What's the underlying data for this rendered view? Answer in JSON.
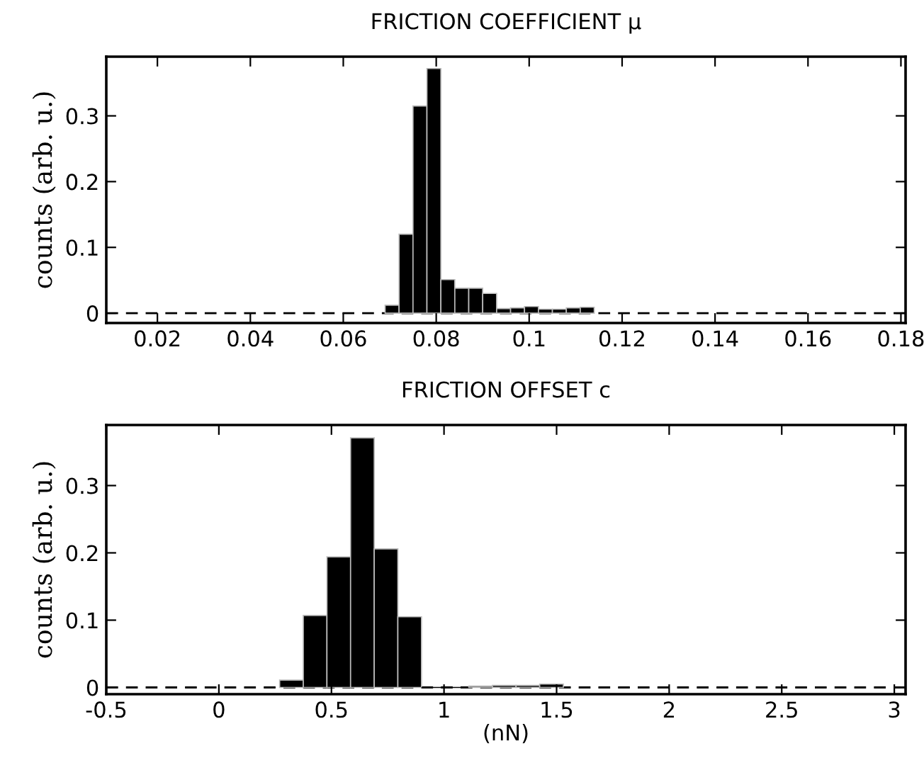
{
  "chart_data": [
    {
      "type": "histogram",
      "title": "FRICTION COEFFICIENT μ",
      "ylabel": "counts (arb. u.)",
      "color": "#000000",
      "bins": [
        0.069,
        0.072,
        0.075,
        0.078,
        0.081,
        0.084,
        0.087,
        0.09,
        0.093,
        0.096,
        0.099,
        0.102,
        0.105,
        0.108,
        0.111,
        0.114
      ],
      "values": [
        0.012,
        0.12,
        0.315,
        0.372,
        0.051,
        0.038,
        0.038,
        0.03,
        0.007,
        0.008,
        0.01,
        0.006,
        0.006,
        0.008,
        0.009
      ],
      "xlim": [
        0.009,
        0.181
      ],
      "xticks": [
        0.02,
        0.04,
        0.06,
        0.08,
        0.1,
        0.12,
        0.14,
        0.16,
        0.18
      ],
      "ylim": [
        -0.015,
        0.39
      ],
      "yticks": [
        0,
        0.1,
        0.2,
        0.3
      ],
      "ref_lines": [
        {
          "axis": "y",
          "value": 0,
          "line_style": "dashed",
          "color": "#000000"
        }
      ],
      "grid": false
    },
    {
      "type": "histogram",
      "title": "FRICTION OFFSET c",
      "ylabel": "counts (arb. u.)",
      "xlabel": "(nN)",
      "color": "#000000",
      "bins": [
        0.27,
        0.375,
        0.48,
        0.585,
        0.69,
        0.795,
        0.9,
        1.005,
        1.11,
        1.215,
        1.32,
        1.425,
        1.53
      ],
      "values": [
        0.011,
        0.107,
        0.194,
        0.371,
        0.206,
        0.105,
        0,
        0,
        0.002,
        0.003,
        0.003,
        0.005
      ],
      "xlim": [
        -0.5,
        3.05
      ],
      "xticks": [
        -0.5,
        0,
        0.5,
        1,
        1.5,
        2,
        2.5,
        3
      ],
      "ylim": [
        -0.01,
        0.39
      ],
      "yticks": [
        0,
        0.1,
        0.2,
        0.3
      ],
      "ref_lines": [
        {
          "axis": "y",
          "value": 0,
          "line_style": "dashed",
          "color": "#000000"
        }
      ],
      "grid": false
    }
  ]
}
